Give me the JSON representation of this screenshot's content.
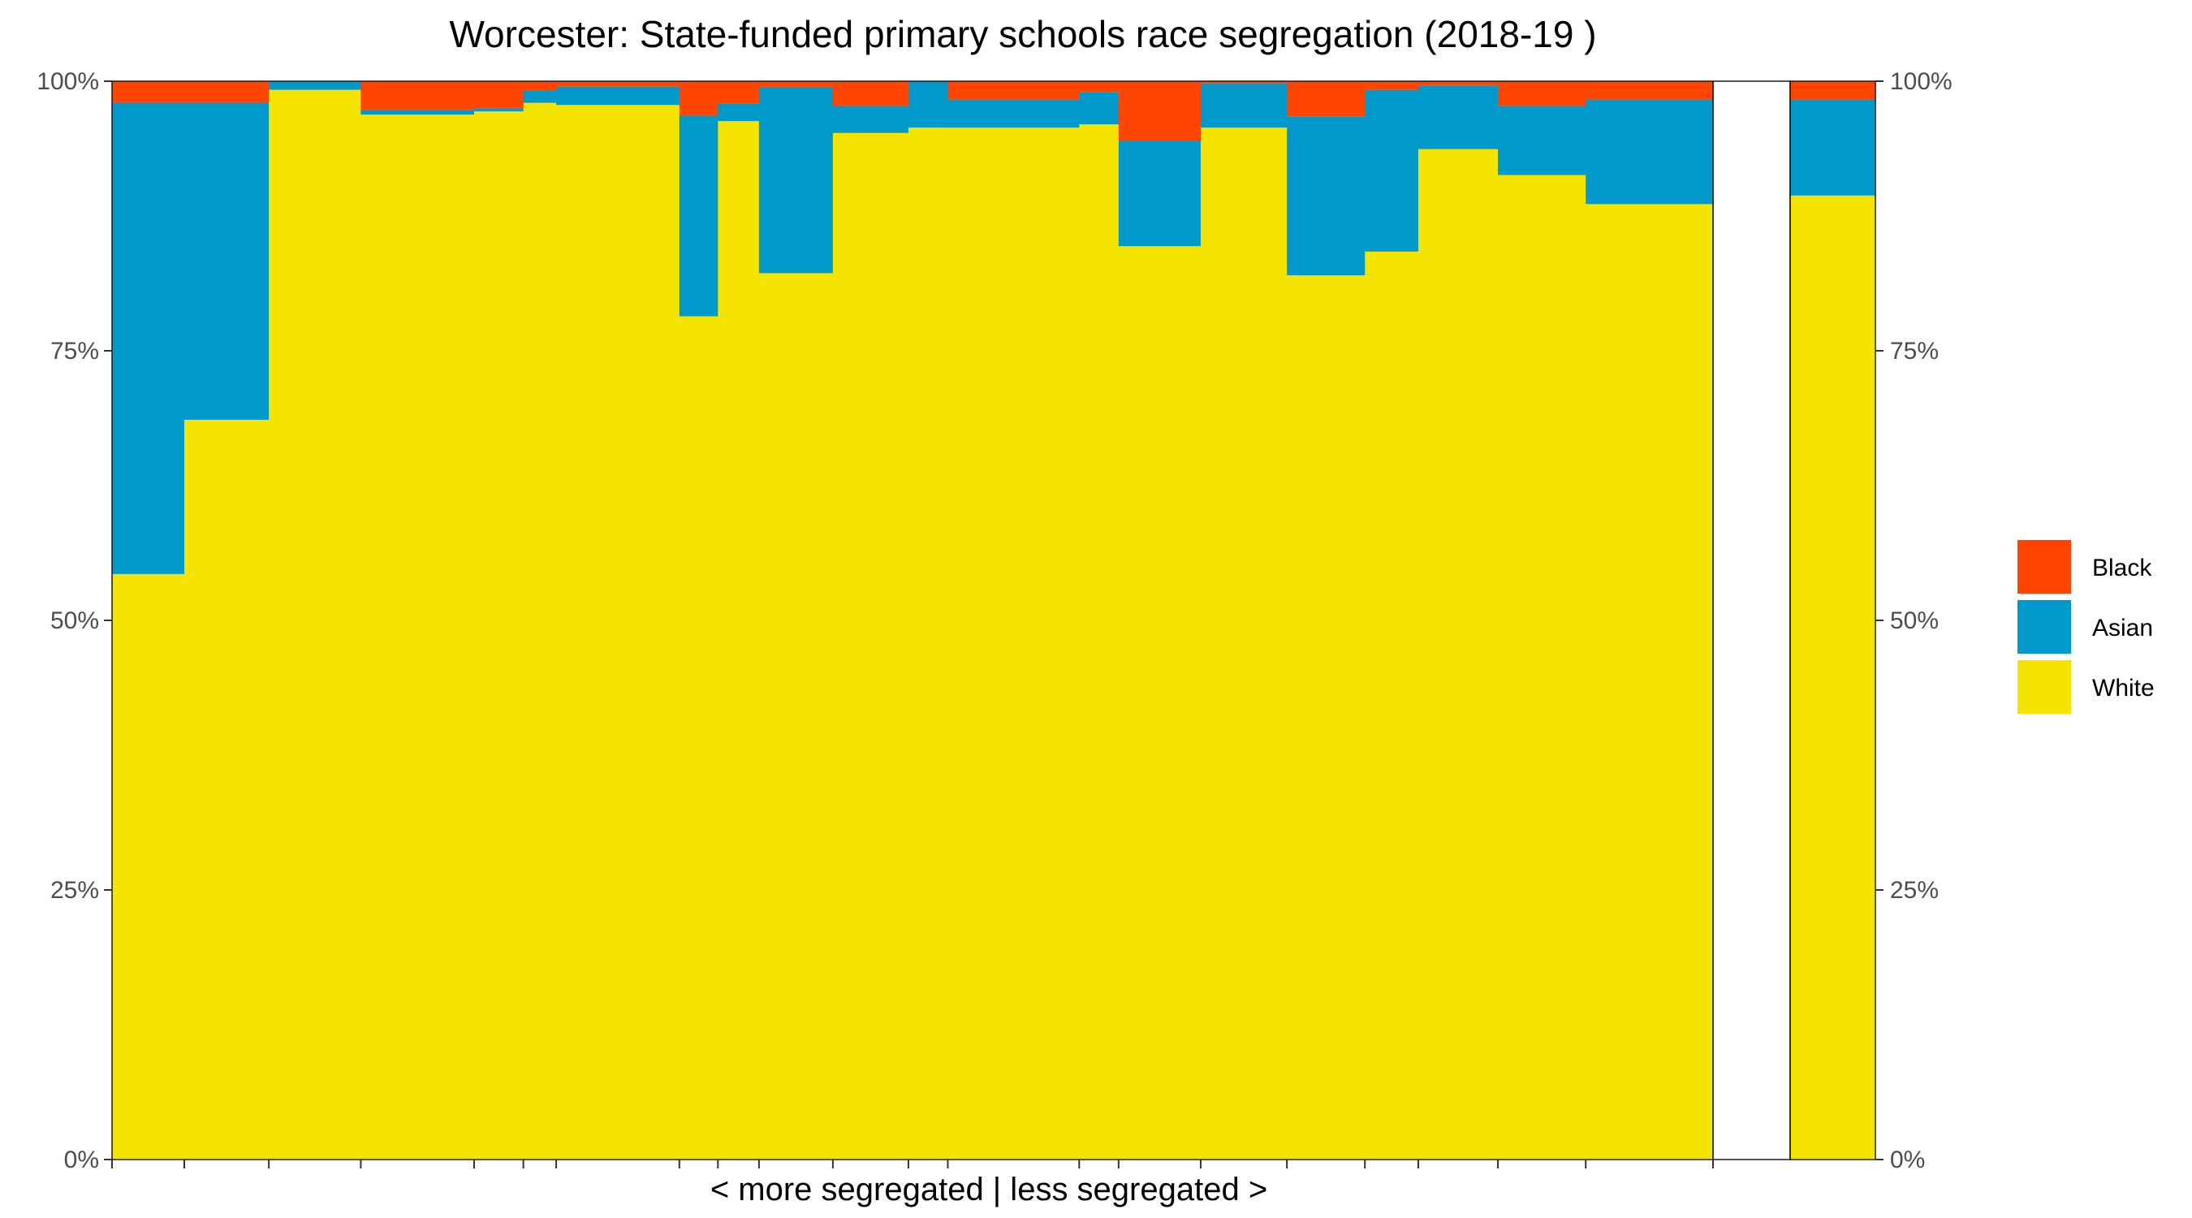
{
  "chart_data": {
    "type": "bar",
    "stacked": true,
    "variable_width": true,
    "title": "Worcester: State-funded primary schools race segregation (2018-19 )",
    "xlabel": "< more segregated | less segregated >",
    "ylabel": "",
    "ylim": [
      0,
      1
    ],
    "y_ticks": [
      "0%",
      "25%",
      "50%",
      "75%",
      "100%"
    ],
    "legend": {
      "placement": "right",
      "items": [
        {
          "name": "Black",
          "color": "#FF4500"
        },
        {
          "name": "Asian",
          "color": "#0099CC"
        },
        {
          "name": "White",
          "color": "#F5E300"
        }
      ]
    },
    "schools": [
      {
        "width": 0.88,
        "white": 0.543,
        "asian": 0.437,
        "black": 0.02
      },
      {
        "width": 1.03,
        "white": 0.686,
        "asian": 0.294,
        "black": 0.02
      },
      {
        "width": 1.12,
        "white": 0.992,
        "asian": 0.008,
        "black": 0.0
      },
      {
        "width": 1.38,
        "white": 0.969,
        "asian": 0.004,
        "black": 0.027
      },
      {
        "width": 0.6,
        "white": 0.972,
        "asian": 0.003,
        "black": 0.025
      },
      {
        "width": 0.4,
        "white": 0.98,
        "asian": 0.011,
        "black": 0.009
      },
      {
        "width": 1.5,
        "white": 0.978,
        "asian": 0.017,
        "black": 0.005
      },
      {
        "width": 0.47,
        "white": 0.782,
        "asian": 0.186,
        "black": 0.032
      },
      {
        "width": 0.5,
        "white": 0.963,
        "asian": 0.016,
        "black": 0.021
      },
      {
        "width": 0.9,
        "white": 0.822,
        "asian": 0.172,
        "black": 0.006
      },
      {
        "width": 0.92,
        "white": 0.952,
        "asian": 0.025,
        "black": 0.023
      },
      {
        "width": 0.48,
        "white": 0.957,
        "asian": 0.043,
        "black": 0.0
      },
      {
        "width": 1.6,
        "white": 0.957,
        "asian": 0.026,
        "black": 0.017
      },
      {
        "width": 0.48,
        "white": 0.96,
        "asian": 0.03,
        "black": 0.01
      },
      {
        "width": 1.0,
        "white": 0.847,
        "asian": 0.098,
        "black": 0.055
      },
      {
        "width": 1.05,
        "white": 0.957,
        "asian": 0.041,
        "black": 0.002
      },
      {
        "width": 0.95,
        "white": 0.82,
        "asian": 0.147,
        "black": 0.033
      },
      {
        "width": 0.65,
        "white": 0.842,
        "asian": 0.15,
        "black": 0.008
      },
      {
        "width": 0.97,
        "white": 0.937,
        "asian": 0.059,
        "black": 0.004
      },
      {
        "width": 1.07,
        "white": 0.913,
        "asian": 0.064,
        "black": 0.023
      },
      {
        "width": 1.55,
        "white": 0.886,
        "asian": 0.097,
        "black": 0.017
      }
    ],
    "overall": {
      "white": 0.894,
      "asian": 0.089,
      "black": 0.017
    }
  }
}
